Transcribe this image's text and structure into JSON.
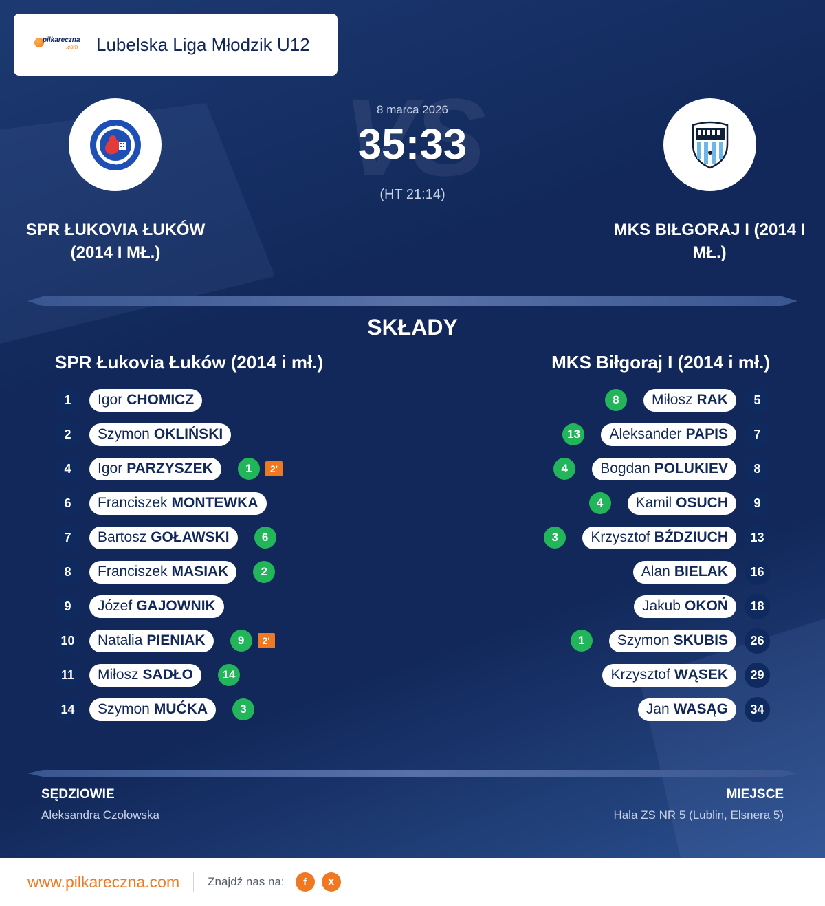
{
  "league": {
    "brand_text": "pilkareczna",
    "brand_suffix": ".com",
    "name": "Lubelska Liga Młodzik U12"
  },
  "match": {
    "date": "8 marca 2026",
    "score": "35:33",
    "halftime": "(HT 21:14)",
    "vs_watermark": "VS"
  },
  "home": {
    "name": "SPR ŁUKOVIA ŁUKÓW (2014 I MŁ.)",
    "lineup_title": "SPR Łukovia Łuków (2014 i mł.)",
    "players": [
      {
        "number": "1",
        "first": "Igor",
        "last": "CHOMICZ",
        "goals": "",
        "susp": ""
      },
      {
        "number": "2",
        "first": "Szymon",
        "last": "OKLIŃSKI",
        "goals": "",
        "susp": ""
      },
      {
        "number": "4",
        "first": "Igor",
        "last": "PARZYSZEK",
        "goals": "1",
        "susp": "2'"
      },
      {
        "number": "6",
        "first": "Franciszek",
        "last": "MONTEWKA",
        "goals": "",
        "susp": ""
      },
      {
        "number": "7",
        "first": "Bartosz",
        "last": "GOŁAWSKI",
        "goals": "6",
        "susp": ""
      },
      {
        "number": "8",
        "first": "Franciszek",
        "last": "MASIAK",
        "goals": "2",
        "susp": ""
      },
      {
        "number": "9",
        "first": "Józef",
        "last": "GAJOWNIK",
        "goals": "",
        "susp": ""
      },
      {
        "number": "10",
        "first": "Natalia",
        "last": "PIENIAK",
        "goals": "9",
        "susp": "2'"
      },
      {
        "number": "11",
        "first": "Miłosz",
        "last": "SADŁO",
        "goals": "14",
        "susp": ""
      },
      {
        "number": "14",
        "first": "Szymon",
        "last": "MUĆKA",
        "goals": "3",
        "susp": ""
      }
    ]
  },
  "away": {
    "name": "MKS BIŁGORAJ I (2014 I MŁ.)",
    "lineup_title": "MKS Biłgoraj I (2014 i mł.)",
    "players": [
      {
        "number": "5",
        "first": "Miłosz",
        "last": "RAK",
        "goals": "8"
      },
      {
        "number": "7",
        "first": "Aleksander",
        "last": "PAPIS",
        "goals": "13"
      },
      {
        "number": "8",
        "first": "Bogdan",
        "last": "POLUKIEV",
        "goals": "4"
      },
      {
        "number": "9",
        "first": "Kamil",
        "last": "OSUCH",
        "goals": "4"
      },
      {
        "number": "13",
        "first": "Krzysztof",
        "last": "BŹDZIUCH",
        "goals": "3"
      },
      {
        "number": "16",
        "first": "Alan",
        "last": "BIELAK",
        "goals": ""
      },
      {
        "number": "18",
        "first": "Jakub",
        "last": "OKOŃ",
        "goals": ""
      },
      {
        "number": "26",
        "first": "Szymon",
        "last": "SKUBIS",
        "goals": "1"
      },
      {
        "number": "29",
        "first": "Krzysztof",
        "last": "WĄSEK",
        "goals": ""
      },
      {
        "number": "34",
        "first": "Jan",
        "last": "WASĄG",
        "goals": ""
      }
    ]
  },
  "section_title": "SKŁADY",
  "referees": {
    "label": "SĘDZIOWIE",
    "value": "Aleksandra Czołowska"
  },
  "venue": {
    "label": "MIEJSCE",
    "value": "Hala ZS NR 5 (Lublin, Elsnera 5)"
  },
  "footer": {
    "site": "www.pilkareczna.com",
    "find_us": "Znajdź nas na:",
    "social": [
      "f",
      "X"
    ]
  },
  "colors": {
    "navy": "#12285a",
    "goal_green": "#22b55a",
    "accent_orange": "#f07820"
  }
}
